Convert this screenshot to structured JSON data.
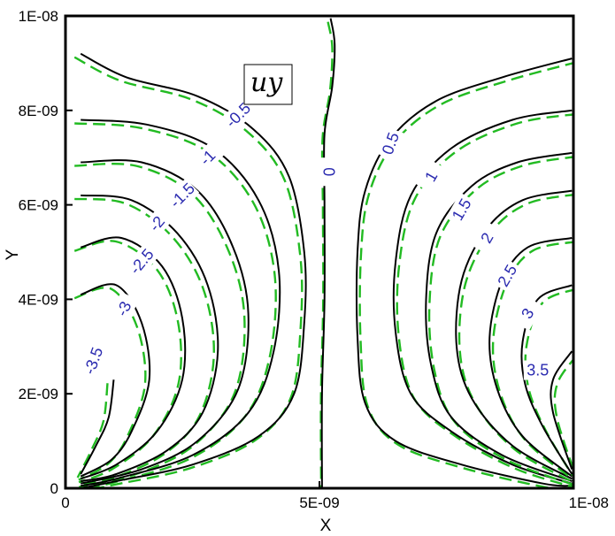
{
  "chart_data": {
    "type": "contour",
    "title": "u_y",
    "title_display": "uy",
    "xlabel": "X",
    "ylabel": "Y",
    "xlim": [
      0,
      1e-08
    ],
    "ylim": [
      0,
      1e-08
    ],
    "xticks": [
      {
        "value": 0,
        "label": "0"
      },
      {
        "value": 5e-09,
        "label": "5E-09"
      },
      {
        "value": 1e-08,
        "label": "1E-08"
      }
    ],
    "yticks": [
      {
        "value": 0,
        "label": "0"
      },
      {
        "value": 2e-09,
        "label": "2E-09"
      },
      {
        "value": 4e-09,
        "label": "4E-09"
      },
      {
        "value": 6e-09,
        "label": "6E-09"
      },
      {
        "value": 8e-09,
        "label": "8E-09"
      },
      {
        "value": 1e-08,
        "label": "1E-08"
      }
    ],
    "colors": {
      "solid": "#000000",
      "dashed": "#22bb22",
      "label": "#2b2bb0"
    },
    "contour_levels": [
      {
        "level": "-3.5",
        "label_at": [
          0.55,
          2.7
        ],
        "label_rot": -70,
        "dashed": true,
        "pts": [
          [
            0.95,
            2.3
          ],
          [
            0.85,
            1.5
          ],
          [
            0.6,
            0.9
          ],
          [
            0.3,
            0.3
          ]
        ]
      },
      {
        "level": "-3",
        "label_at": [
          1.15,
          3.8
        ],
        "label_rot": -65,
        "pts": [
          [
            0.3,
            4.1
          ],
          [
            1.0,
            4.3
          ],
          [
            1.5,
            3.5
          ],
          [
            1.65,
            2.3
          ],
          [
            1.3,
            1.2
          ],
          [
            0.9,
            0.6
          ],
          [
            0.3,
            0.25
          ]
        ]
      },
      {
        "level": "-2.5",
        "label_at": [
          1.5,
          4.8
        ],
        "label_rot": -50,
        "pts": [
          [
            0.3,
            5.1
          ],
          [
            1.1,
            5.3
          ],
          [
            1.9,
            4.7
          ],
          [
            2.3,
            3.6
          ],
          [
            2.3,
            2.3
          ],
          [
            1.8,
            1.2
          ],
          [
            1.0,
            0.5
          ],
          [
            0.3,
            0.2
          ]
        ]
      },
      {
        "level": "-2",
        "label_at": [
          1.8,
          5.6
        ],
        "label_rot": -50,
        "pts": [
          [
            0.3,
            6.2
          ],
          [
            1.3,
            6.1
          ],
          [
            2.2,
            5.4
          ],
          [
            2.8,
            4.3
          ],
          [
            3.0,
            2.9
          ],
          [
            2.7,
            1.6
          ],
          [
            2.0,
            0.8
          ],
          [
            1.0,
            0.3
          ],
          [
            0.3,
            0.15
          ]
        ]
      },
      {
        "level": "-1.5",
        "label_at": [
          2.3,
          6.2
        ],
        "label_rot": -45,
        "pts": [
          [
            0.3,
            6.9
          ],
          [
            1.5,
            6.9
          ],
          [
            2.6,
            6.3
          ],
          [
            3.3,
            5.1
          ],
          [
            3.6,
            3.7
          ],
          [
            3.4,
            2.1
          ],
          [
            2.6,
            1.0
          ],
          [
            1.5,
            0.4
          ],
          [
            0.3,
            0.1
          ]
        ]
      },
      {
        "level": "-1",
        "label_at": [
          2.8,
          7.0
        ],
        "label_rot": -45,
        "pts": [
          [
            0.3,
            7.8
          ],
          [
            1.6,
            7.7
          ],
          [
            2.9,
            7.2
          ],
          [
            3.8,
            6.1
          ],
          [
            4.2,
            4.6
          ],
          [
            4.1,
            2.9
          ],
          [
            3.6,
            1.6
          ],
          [
            2.5,
            0.7
          ],
          [
            1.0,
            0.2
          ],
          [
            0.3,
            0.05
          ]
        ]
      },
      {
        "level": "-0.5",
        "label_at": [
          3.4,
          7.9
        ],
        "label_rot": -45,
        "pts": [
          [
            0.3,
            9.2
          ],
          [
            1.2,
            8.7
          ],
          [
            2.6,
            8.3
          ],
          [
            3.7,
            7.6
          ],
          [
            4.4,
            6.6
          ],
          [
            4.7,
            5.0
          ],
          [
            4.7,
            3.5
          ],
          [
            4.5,
            2.0
          ],
          [
            3.8,
            1.1
          ],
          [
            2.5,
            0.5
          ],
          [
            1.0,
            0.15
          ],
          [
            0.3,
            0.0
          ]
        ]
      },
      {
        "level": "0",
        "label_at": [
          5.2,
          6.7
        ],
        "label_rot": -90,
        "pts": [
          [
            5.22,
            9.95
          ],
          [
            5.3,
            9.4
          ],
          [
            5.25,
            8.5
          ],
          [
            5.1,
            7.5
          ],
          [
            5.1,
            6.0
          ],
          [
            5.1,
            4.0
          ],
          [
            5.05,
            2.0
          ],
          [
            5.05,
            0.0
          ]
        ]
      },
      {
        "level": "0.5",
        "label_at": [
          6.4,
          7.3
        ],
        "label_rot": -70,
        "pts": [
          [
            9.97,
            9.1
          ],
          [
            8.6,
            8.7
          ],
          [
            7.3,
            8.2
          ],
          [
            6.4,
            7.4
          ],
          [
            5.9,
            6.3
          ],
          [
            5.75,
            5.0
          ],
          [
            5.75,
            3.2
          ],
          [
            5.9,
            1.8
          ],
          [
            6.5,
            1.0
          ],
          [
            7.8,
            0.5
          ],
          [
            9.4,
            0.1
          ],
          [
            9.97,
            0.05
          ]
        ]
      },
      {
        "level": "1",
        "label_at": [
          7.2,
          6.6
        ],
        "label_rot": -60,
        "pts": [
          [
            9.97,
            8.0
          ],
          [
            8.8,
            7.8
          ],
          [
            7.6,
            7.2
          ],
          [
            6.8,
            6.2
          ],
          [
            6.5,
            4.8
          ],
          [
            6.5,
            3.3
          ],
          [
            6.8,
            2.0
          ],
          [
            7.6,
            1.2
          ],
          [
            8.8,
            0.5
          ],
          [
            9.97,
            0.1
          ]
        ]
      },
      {
        "level": "1.5",
        "label_at": [
          7.8,
          5.9
        ],
        "label_rot": -60,
        "pts": [
          [
            9.97,
            7.1
          ],
          [
            8.9,
            6.9
          ],
          [
            8.0,
            6.4
          ],
          [
            7.3,
            5.4
          ],
          [
            7.1,
            4.0
          ],
          [
            7.2,
            2.6
          ],
          [
            7.6,
            1.5
          ],
          [
            8.6,
            0.7
          ],
          [
            9.97,
            0.15
          ]
        ]
      },
      {
        "level": "2",
        "label_at": [
          8.3,
          5.3
        ],
        "label_rot": -60,
        "pts": [
          [
            9.97,
            6.3
          ],
          [
            9.0,
            6.1
          ],
          [
            8.3,
            5.5
          ],
          [
            7.8,
            4.4
          ],
          [
            7.7,
            3.0
          ],
          [
            8.0,
            1.9
          ],
          [
            8.8,
            0.9
          ],
          [
            9.97,
            0.2
          ]
        ]
      },
      {
        "level": "2.5",
        "label_at": [
          8.7,
          4.5
        ],
        "label_rot": -60,
        "pts": [
          [
            9.97,
            5.3
          ],
          [
            9.1,
            5.1
          ],
          [
            8.6,
            4.4
          ],
          [
            8.35,
            3.2
          ],
          [
            8.5,
            2.1
          ],
          [
            9.0,
            1.1
          ],
          [
            9.97,
            0.25
          ]
        ]
      },
      {
        "level": "3",
        "label_at": [
          9.1,
          3.7
        ],
        "label_rot": -60,
        "pts": [
          [
            9.97,
            4.3
          ],
          [
            9.3,
            4.0
          ],
          [
            9.0,
            3.1
          ],
          [
            9.05,
            2.2
          ],
          [
            9.4,
            1.3
          ],
          [
            9.97,
            0.3
          ]
        ]
      },
      {
        "level": "3.5",
        "label_at": [
          9.3,
          2.5
        ],
        "label_rot": 0,
        "pts": [
          [
            9.97,
            2.9
          ],
          [
            9.6,
            2.3
          ],
          [
            9.6,
            1.6
          ],
          [
            9.97,
            0.4
          ]
        ]
      }
    ],
    "dashed_offsets_note": ""
  }
}
